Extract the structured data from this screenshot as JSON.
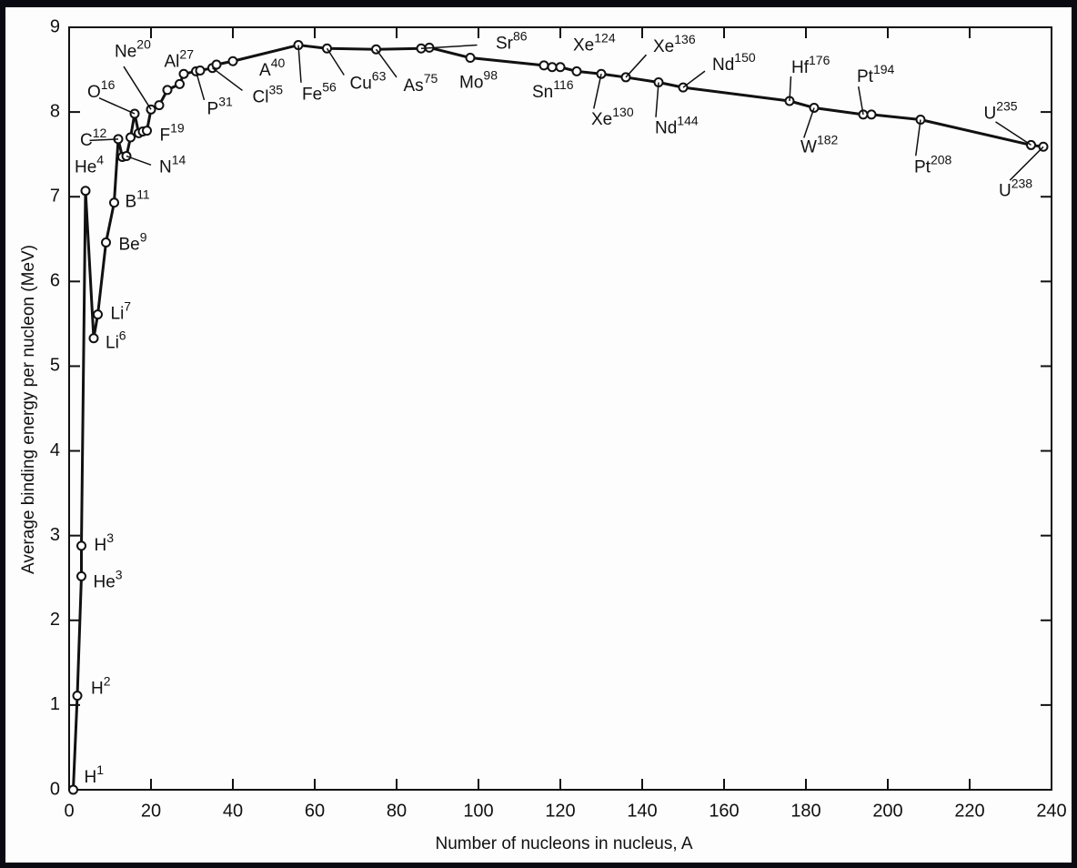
{
  "chart_data": {
    "type": "line",
    "x_label": "Number of nucleons in nucleus, A",
    "y_label": "Average binding energy per nucleon (MeV)",
    "x": [
      1,
      2,
      3,
      3,
      4,
      6,
      7,
      9,
      11,
      12,
      13,
      14,
      15,
      16,
      17,
      18,
      19,
      20,
      22,
      24,
      27,
      28,
      31,
      32,
      35,
      36,
      40,
      56,
      63,
      75,
      86,
      88,
      98,
      116,
      118,
      120,
      124,
      130,
      136,
      144,
      150,
      176,
      182,
      194,
      196,
      208,
      235,
      238
    ],
    "series": [
      {
        "color": "#111111",
        "values": [
          0,
          1.11,
          2.52,
          2.88,
          7.07,
          5.33,
          5.61,
          6.46,
          6.93,
          7.68,
          7.47,
          7.48,
          7.7,
          7.98,
          7.75,
          7.77,
          7.78,
          8.03,
          8.08,
          8.26,
          8.33,
          8.45,
          8.48,
          8.49,
          8.52,
          8.56,
          8.6,
          8.79,
          8.75,
          8.74,
          8.75,
          8.76,
          8.64,
          8.55,
          8.53,
          8.53,
          8.48,
          8.45,
          8.41,
          8.35,
          8.29,
          8.13,
          8.05,
          7.97,
          7.97,
          7.91,
          7.61,
          7.59
        ]
      }
    ],
    "point_labels": [
      "H",
      "H",
      "He",
      "H",
      "He",
      "Li",
      "Li",
      "Be",
      "B",
      "C",
      null,
      "N",
      null,
      "O",
      null,
      null,
      "F",
      "Ne",
      null,
      null,
      "Al",
      null,
      "P",
      null,
      "Cl",
      null,
      "A",
      "Fe",
      "Cu",
      "As",
      "Sr",
      null,
      "Mo",
      "Sn",
      null,
      null,
      "Xe",
      "Xe",
      "Xe",
      "Nd",
      "Nd",
      "Hf",
      "W",
      "Pt",
      null,
      "Pt",
      "U",
      "U"
    ],
    "xlim": [
      0,
      240
    ],
    "xticks": [
      0,
      20,
      40,
      60,
      80,
      100,
      120,
      140,
      160,
      180,
      200,
      220,
      240
    ],
    "ylim": [
      0,
      9
    ],
    "yticks": [
      0,
      1,
      2,
      3,
      4,
      5,
      6,
      7,
      8,
      9
    ]
  }
}
